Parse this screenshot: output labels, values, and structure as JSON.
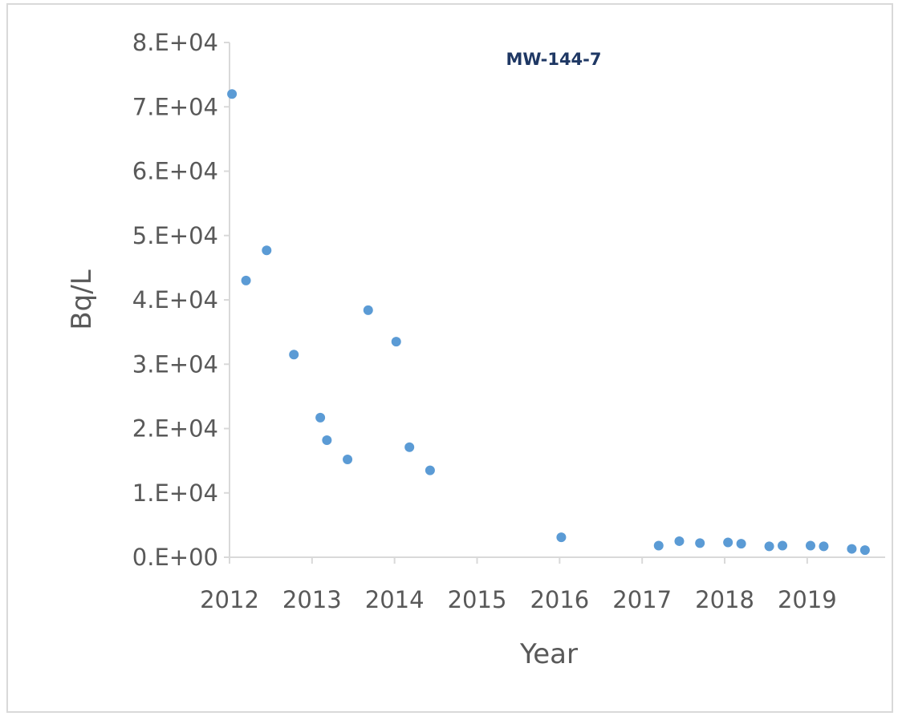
{
  "chart_data": {
    "type": "scatter",
    "title": "MW-144-7",
    "xlabel": "Year",
    "ylabel": "Bq/L",
    "xlim": [
      2012,
      2019.75
    ],
    "ylim": [
      0,
      80000
    ],
    "x_ticks": [
      2012,
      2013,
      2014,
      2015,
      2016,
      2017,
      2018,
      2019
    ],
    "x_tick_labels": [
      "2012",
      "2013",
      "2014",
      "2015",
      "2016",
      "2017",
      "2018",
      "2019"
    ],
    "y_ticks": [
      0,
      10000,
      20000,
      30000,
      40000,
      50000,
      60000,
      70000,
      80000
    ],
    "y_tick_labels": [
      "0.E+00",
      "1.E+04",
      "2.E+04",
      "3.E+04",
      "4.E+04",
      "5.E+04",
      "6.E+04",
      "7.E+04",
      "8.E+04"
    ],
    "grid": false,
    "legend": "none",
    "marker_color": "#5b9bd5",
    "title_color": "#1f3864",
    "series": [
      {
        "x": [
          2012.03,
          2012.2,
          2012.45,
          2012.78,
          2013.1,
          2013.18,
          2013.43,
          2013.68,
          2014.02,
          2014.18,
          2014.43,
          2016.02,
          2017.2,
          2017.45,
          2017.7,
          2018.04,
          2018.2,
          2018.54,
          2018.7,
          2019.04,
          2019.2,
          2019.54,
          2019.7
        ],
        "y": [
          72000,
          43000,
          47700,
          31500,
          21700,
          18200,
          15200,
          38400,
          33500,
          17100,
          13500,
          3100,
          1800,
          2500,
          2200,
          2300,
          2100,
          1700,
          1800,
          1800,
          1700,
          1300,
          1100
        ]
      }
    ]
  }
}
